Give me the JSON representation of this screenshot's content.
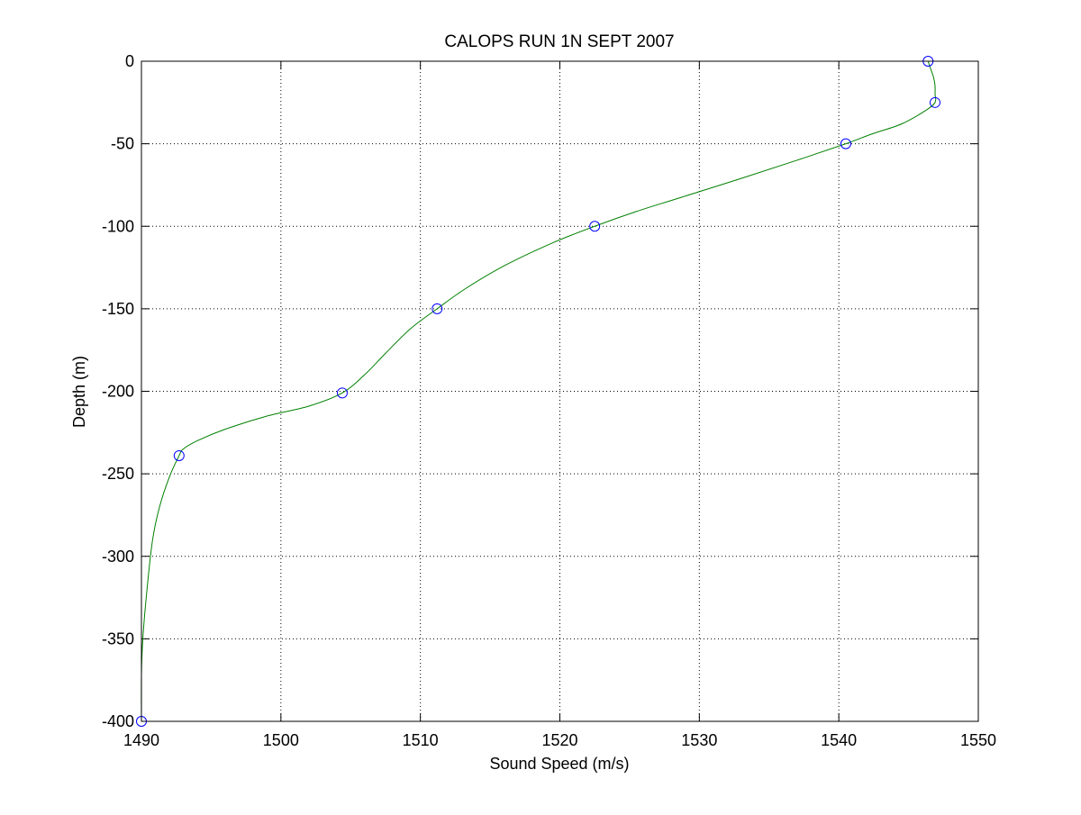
{
  "chart_data": {
    "type": "line",
    "title": "CALOPS RUN 1N SEPT 2007",
    "xlabel": "Sound Speed (m/s)",
    "ylabel": "Depth (m)",
    "xlim": [
      1490,
      1550
    ],
    "ylim": [
      -400,
      0
    ],
    "xticks": [
      1490,
      1500,
      1510,
      1520,
      1530,
      1540,
      1550
    ],
    "yticks": [
      0,
      -50,
      -100,
      -150,
      -200,
      -250,
      -300,
      -350,
      -400
    ],
    "xtick_labels": [
      "1490",
      "1500",
      "1510",
      "1520",
      "1530",
      "1540",
      "1550"
    ],
    "ytick_labels": [
      "0",
      "-50",
      "-100",
      "-150",
      "-200",
      "-250",
      "-300",
      "-350",
      "-400"
    ],
    "grid": true,
    "grid_style": "dotted",
    "series": [
      {
        "style": "markers",
        "marker": "circle",
        "color": "#0000ff",
        "points": [
          {
            "x": 1546.4,
            "y": 0
          },
          {
            "x": 1546.9,
            "y": -25
          },
          {
            "x": 1540.5,
            "y": -50
          },
          {
            "x": 1522.5,
            "y": -100
          },
          {
            "x": 1511.2,
            "y": -150
          },
          {
            "x": 1504.4,
            "y": -201
          },
          {
            "x": 1492.7,
            "y": -239
          },
          {
            "x": 1490.0,
            "y": -400
          }
        ]
      },
      {
        "style": "line",
        "color": "#008000",
        "points": [
          {
            "x": 1546.4,
            "y": 0
          },
          {
            "x": 1546.6,
            "y": -5
          },
          {
            "x": 1546.8,
            "y": -10
          },
          {
            "x": 1546.9,
            "y": -15
          },
          {
            "x": 1546.9,
            "y": -20
          },
          {
            "x": 1546.9,
            "y": -25
          },
          {
            "x": 1546.2,
            "y": -30
          },
          {
            "x": 1544.5,
            "y": -38
          },
          {
            "x": 1542.4,
            "y": -44
          },
          {
            "x": 1540.5,
            "y": -50
          },
          {
            "x": 1537.0,
            "y": -60
          },
          {
            "x": 1533.0,
            "y": -71
          },
          {
            "x": 1528.5,
            "y": -83
          },
          {
            "x": 1525.5,
            "y": -91
          },
          {
            "x": 1522.5,
            "y": -100
          },
          {
            "x": 1519.5,
            "y": -110
          },
          {
            "x": 1516.0,
            "y": -124
          },
          {
            "x": 1513.2,
            "y": -138
          },
          {
            "x": 1511.2,
            "y": -150
          },
          {
            "x": 1509.3,
            "y": -162
          },
          {
            "x": 1507.5,
            "y": -177
          },
          {
            "x": 1506.0,
            "y": -190
          },
          {
            "x": 1504.4,
            "y": -201
          },
          {
            "x": 1502.0,
            "y": -209
          },
          {
            "x": 1499.0,
            "y": -215
          },
          {
            "x": 1496.0,
            "y": -223
          },
          {
            "x": 1494.0,
            "y": -230
          },
          {
            "x": 1493.0,
            "y": -235
          },
          {
            "x": 1492.7,
            "y": -239
          },
          {
            "x": 1492.0,
            "y": -252
          },
          {
            "x": 1491.3,
            "y": -270
          },
          {
            "x": 1490.8,
            "y": -290
          },
          {
            "x": 1490.4,
            "y": -320
          },
          {
            "x": 1490.1,
            "y": -350
          },
          {
            "x": 1490.0,
            "y": -372
          },
          {
            "x": 1490.0,
            "y": -400
          }
        ]
      }
    ]
  }
}
